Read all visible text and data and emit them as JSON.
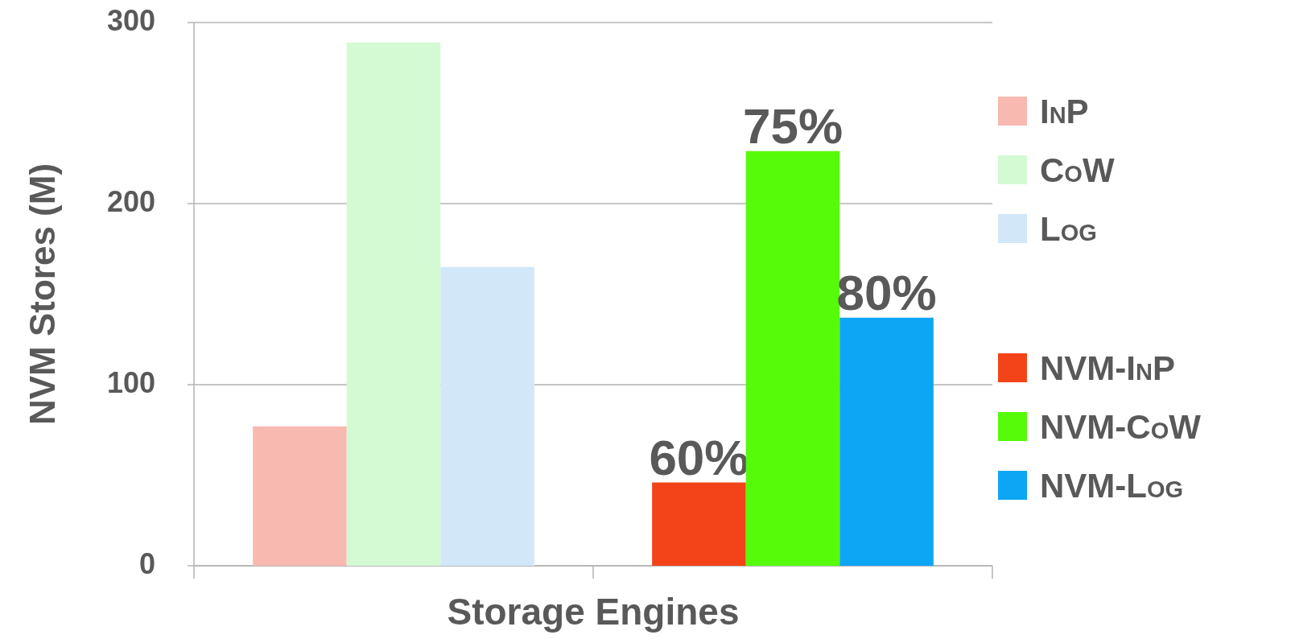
{
  "chart_data": {
    "type": "bar",
    "xlabel": "Storage Engines",
    "ylabel": "NVM Stores (M)",
    "categories": [
      null,
      null
    ],
    "ylim": [
      0,
      300
    ],
    "yticks": [
      0,
      100,
      200,
      300
    ],
    "grid": "y",
    "legend": "right",
    "annotations": [
      "60%",
      "75%",
      "80%"
    ],
    "series": [
      {
        "name": "InP",
        "color": "#f8b9b0",
        "values": [
          77,
          null
        ]
      },
      {
        "name": "CoW",
        "color": "#d3fad3",
        "values": [
          289,
          null
        ]
      },
      {
        "name": "Log",
        "color": "#d2e7f7",
        "values": [
          165,
          null
        ]
      },
      {
        "name": "NVM-InP",
        "color": "#f34419",
        "values": [
          null,
          46
        ]
      },
      {
        "name": "NVM-CoW",
        "color": "#55fb09",
        "values": [
          null,
          229
        ]
      },
      {
        "name": "NVM-Log",
        "color": "#0ca6f4",
        "values": [
          null,
          137
        ]
      }
    ]
  }
}
